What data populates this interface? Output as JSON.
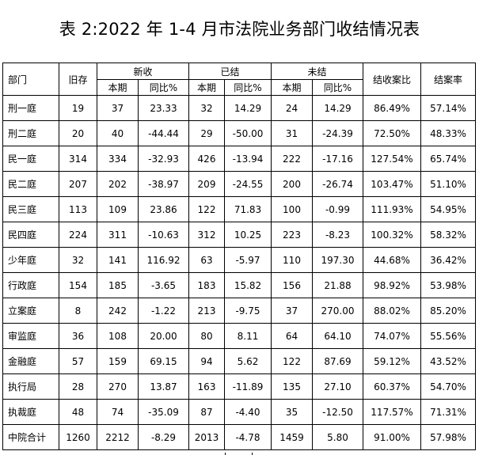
{
  "title": "表 2:2022 年 1-4 月市法院业务部门收结情况表",
  "headers": {
    "dept": "部门",
    "old": "旧存",
    "new": "新收",
    "closed": "已结",
    "open": "未结",
    "ratio_close_receive": "结收案比",
    "close_rate": "结案率",
    "this_period": "本期",
    "yoy": "同比%"
  },
  "rows": [
    {
      "dept": "刑一庭",
      "old": "19",
      "new_cur": "37",
      "new_yoy": "23.33",
      "closed_cur": "32",
      "closed_yoy": "14.29",
      "open_cur": "24",
      "open_yoy": "14.29",
      "ratio": "86.49%",
      "rate": "57.14%"
    },
    {
      "dept": "刑二庭",
      "old": "20",
      "new_cur": "40",
      "new_yoy": "-44.44",
      "closed_cur": "29",
      "closed_yoy": "-50.00",
      "open_cur": "31",
      "open_yoy": "-24.39",
      "ratio": "72.50%",
      "rate": "48.33%"
    },
    {
      "dept": "民一庭",
      "old": "314",
      "new_cur": "334",
      "new_yoy": "-32.93",
      "closed_cur": "426",
      "closed_yoy": "-13.94",
      "open_cur": "222",
      "open_yoy": "-17.16",
      "ratio": "127.54%",
      "rate": "65.74%"
    },
    {
      "dept": "民二庭",
      "old": "207",
      "new_cur": "202",
      "new_yoy": "-38.97",
      "closed_cur": "209",
      "closed_yoy": "-24.55",
      "open_cur": "200",
      "open_yoy": "-26.74",
      "ratio": "103.47%",
      "rate": "51.10%"
    },
    {
      "dept": "民三庭",
      "old": "113",
      "new_cur": "109",
      "new_yoy": "23.86",
      "closed_cur": "122",
      "closed_yoy": "71.83",
      "open_cur": "100",
      "open_yoy": "-0.99",
      "ratio": "111.93%",
      "rate": "54.95%"
    },
    {
      "dept": "民四庭",
      "old": "224",
      "new_cur": "311",
      "new_yoy": "-10.63",
      "closed_cur": "312",
      "closed_yoy": "10.25",
      "open_cur": "223",
      "open_yoy": "-8.23",
      "ratio": "100.32%",
      "rate": "58.32%"
    },
    {
      "dept": "少年庭",
      "old": "32",
      "new_cur": "141",
      "new_yoy": "116.92",
      "closed_cur": "63",
      "closed_yoy": "-5.97",
      "open_cur": "110",
      "open_yoy": "197.30",
      "ratio": "44.68%",
      "rate": "36.42%"
    },
    {
      "dept": "行政庭",
      "old": "154",
      "new_cur": "185",
      "new_yoy": "-3.65",
      "closed_cur": "183",
      "closed_yoy": "15.82",
      "open_cur": "156",
      "open_yoy": "21.88",
      "ratio": "98.92%",
      "rate": "53.98%"
    },
    {
      "dept": "立案庭",
      "old": "8",
      "new_cur": "242",
      "new_yoy": "-1.22",
      "closed_cur": "213",
      "closed_yoy": "-9.75",
      "open_cur": "37",
      "open_yoy": "270.00",
      "ratio": "88.02%",
      "rate": "85.20%"
    },
    {
      "dept": "审监庭",
      "old": "36",
      "new_cur": "108",
      "new_yoy": "20.00",
      "closed_cur": "80",
      "closed_yoy": "8.11",
      "open_cur": "64",
      "open_yoy": "64.10",
      "ratio": "74.07%",
      "rate": "55.56%"
    },
    {
      "dept": "金融庭",
      "old": "57",
      "new_cur": "159",
      "new_yoy": "69.15",
      "closed_cur": "94",
      "closed_yoy": "5.62",
      "open_cur": "122",
      "open_yoy": "87.69",
      "ratio": "59.12%",
      "rate": "43.52%"
    },
    {
      "dept": "执行局",
      "old": "28",
      "new_cur": "270",
      "new_yoy": "13.87",
      "closed_cur": "163",
      "closed_yoy": "-11.89",
      "open_cur": "135",
      "open_yoy": "27.10",
      "ratio": "60.37%",
      "rate": "54.70%"
    },
    {
      "dept": "执裁庭",
      "old": "48",
      "new_cur": "74",
      "new_yoy": "-35.09",
      "closed_cur": "87",
      "closed_yoy": "-4.40",
      "open_cur": "35",
      "open_yoy": "-12.50",
      "ratio": "117.57%",
      "rate": "71.31%"
    },
    {
      "dept": "中院合计",
      "old": "1260",
      "new_cur": "2212",
      "new_yoy": "-8.29",
      "closed_cur": "2013",
      "closed_yoy": "-4.78",
      "open_cur": "1459",
      "open_yoy": "5.80",
      "ratio": "91.00%",
      "rate": "57.98%"
    }
  ]
}
